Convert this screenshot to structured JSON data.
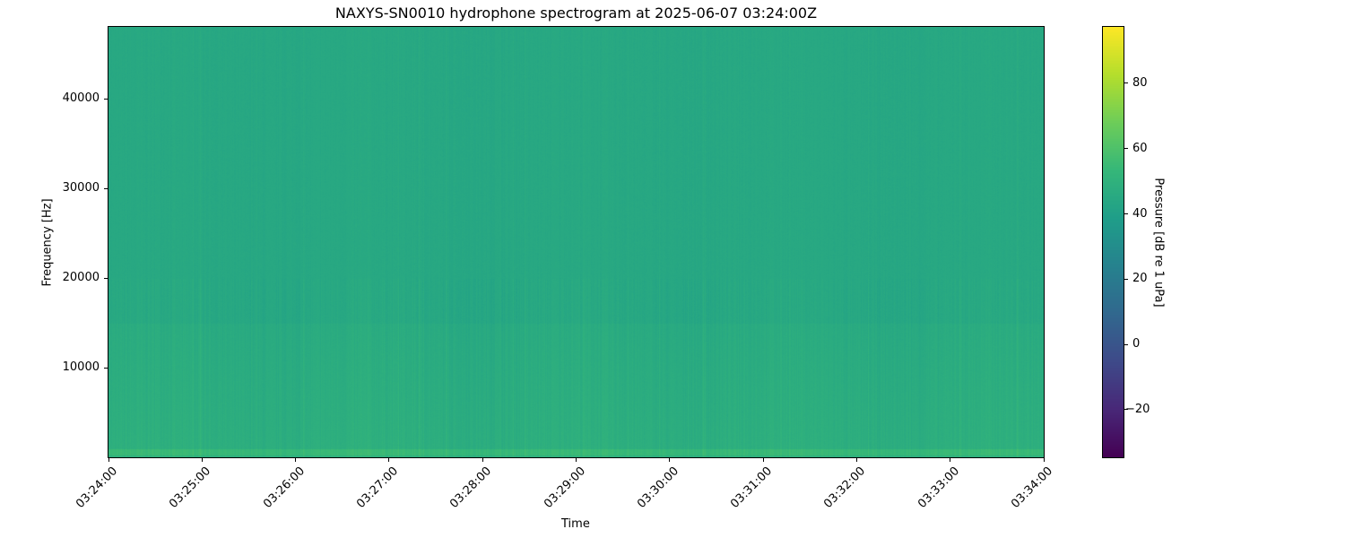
{
  "chart_data": {
    "type": "heatmap",
    "title": "NAXYS-SN0010 hydrophone spectrogram at 2025-06-07 03:24:00Z",
    "xlabel": "Time",
    "ylabel": "Frequency [Hz]",
    "x_ticks": [
      "03:24:00",
      "03:25:00",
      "03:26:00",
      "03:27:00",
      "03:28:00",
      "03:29:00",
      "03:30:00",
      "03:31:00",
      "03:32:00",
      "03:33:00",
      "03:34:00"
    ],
    "x_range": [
      "03:24:00",
      "03:34:00"
    ],
    "y_ticks": [
      10000,
      20000,
      30000,
      40000
    ],
    "y_range": [
      0,
      48000
    ],
    "colormap": "viridis",
    "colorbar": {
      "label": "Pressure [dB re 1 uPa]",
      "ticks": [
        -20,
        0,
        20,
        40,
        60,
        80
      ],
      "range": [
        -34.6,
        97.3
      ]
    },
    "grid": false
  }
}
